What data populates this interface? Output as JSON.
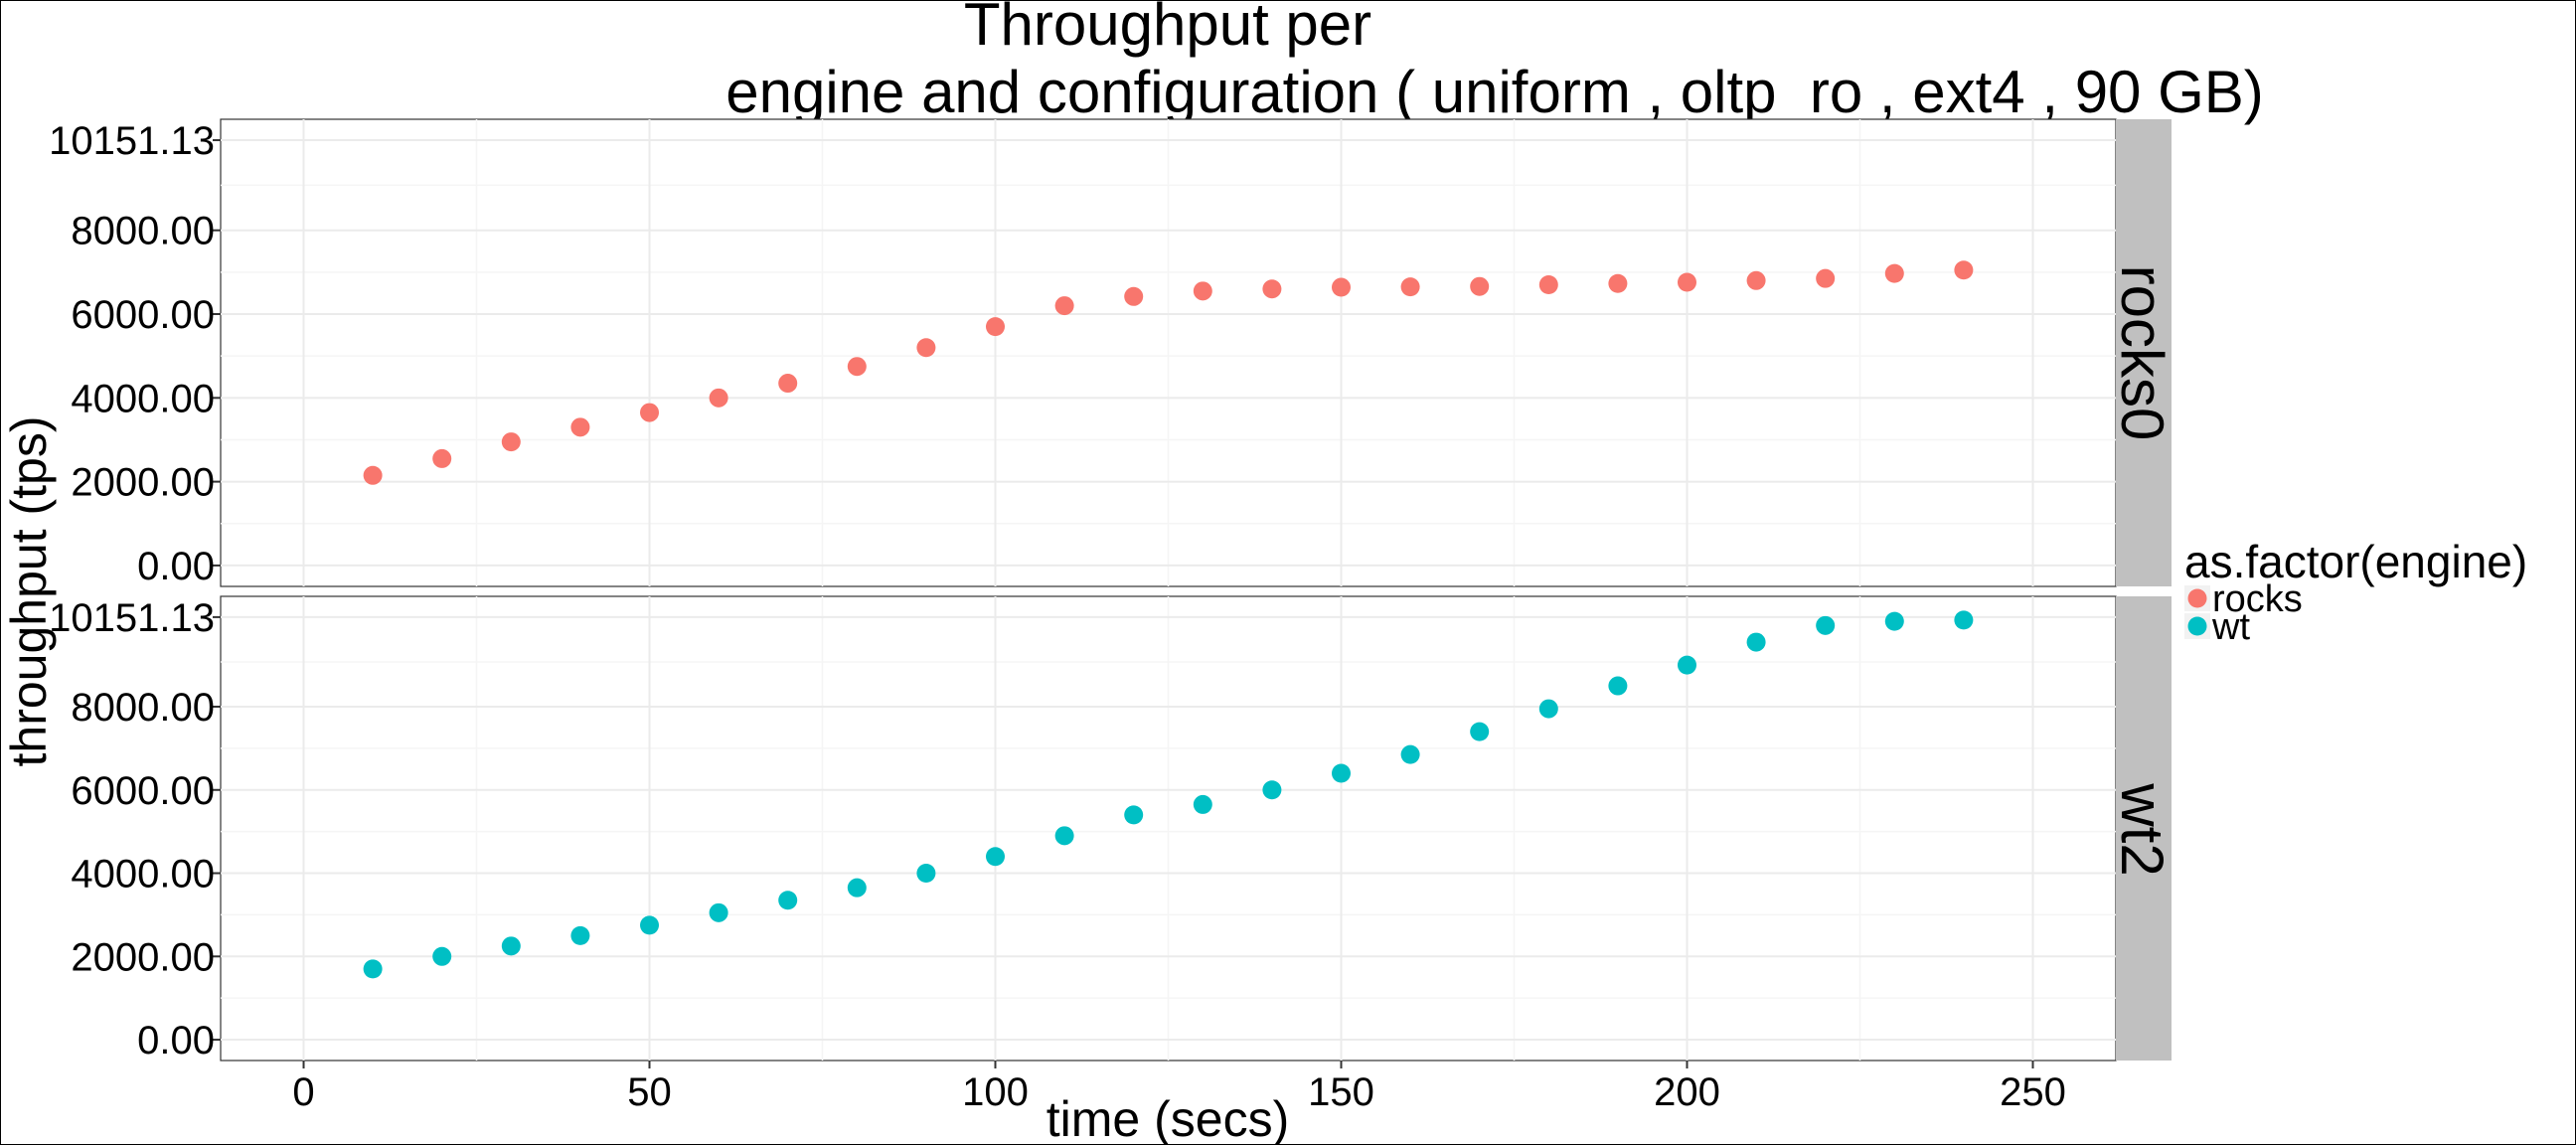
{
  "chart_data": {
    "type": "scatter",
    "title_line1": "Throughput per",
    "title_line2": "engine and configuration ( uniform , oltp_ro , ext4 ,  90 GB)",
    "xlabel": "time (secs)",
    "ylabel": "throughput (tps)",
    "x_ticks": [
      0,
      50,
      100,
      150,
      200,
      250
    ],
    "x_tick_labels": [
      "0",
      "50",
      "100",
      "150",
      "200",
      "250"
    ],
    "xlim": [
      -12,
      262
    ],
    "y_ticks": [
      0,
      2000,
      4000,
      6000,
      8000,
      10151.13
    ],
    "y_tick_labels": [
      "0.00",
      "2000.00",
      "4000.00",
      "6000.00",
      "8000.00",
      "10151.13"
    ],
    "ylim": [
      -500,
      10650
    ],
    "grid": true,
    "legend": {
      "title": "as.factor(engine)",
      "position": "right",
      "entries": [
        {
          "label": "rocks",
          "color": "#F8766D"
        },
        {
          "label": "wt",
          "color": "#00BFC4"
        }
      ]
    },
    "facets": [
      {
        "strip": "rocks0",
        "series": "rocks",
        "color": "#F8766D",
        "x": [
          10,
          20,
          30,
          40,
          50,
          60,
          70,
          80,
          90,
          100,
          110,
          120,
          130,
          140,
          150,
          160,
          170,
          180,
          190,
          200,
          210,
          220,
          230,
          240
        ],
        "y": [
          2150,
          2550,
          2950,
          3300,
          3650,
          4000,
          4350,
          4750,
          5200,
          5700,
          6200,
          6420,
          6550,
          6600,
          6640,
          6650,
          6660,
          6700,
          6730,
          6760,
          6800,
          6850,
          6970,
          7050
        ]
      },
      {
        "strip": "wt2",
        "series": "wt",
        "color": "#00BFC4",
        "x": [
          10,
          20,
          30,
          40,
          50,
          60,
          70,
          80,
          90,
          100,
          110,
          120,
          130,
          140,
          150,
          160,
          170,
          180,
          190,
          200,
          210,
          220,
          230,
          240
        ],
        "y": [
          1700,
          2000,
          2250,
          2500,
          2750,
          3050,
          3350,
          3650,
          4000,
          4400,
          4900,
          5400,
          5650,
          6000,
          6400,
          6850,
          7400,
          7950,
          8500,
          9000,
          9550,
          9950,
          10050,
          10080
        ]
      }
    ]
  },
  "colors": {
    "panel_background": "#ffffff",
    "grid_major": "#ebebeb",
    "grid_minor": "#f5f5f5",
    "strip_background": "#c0c0c0"
  }
}
